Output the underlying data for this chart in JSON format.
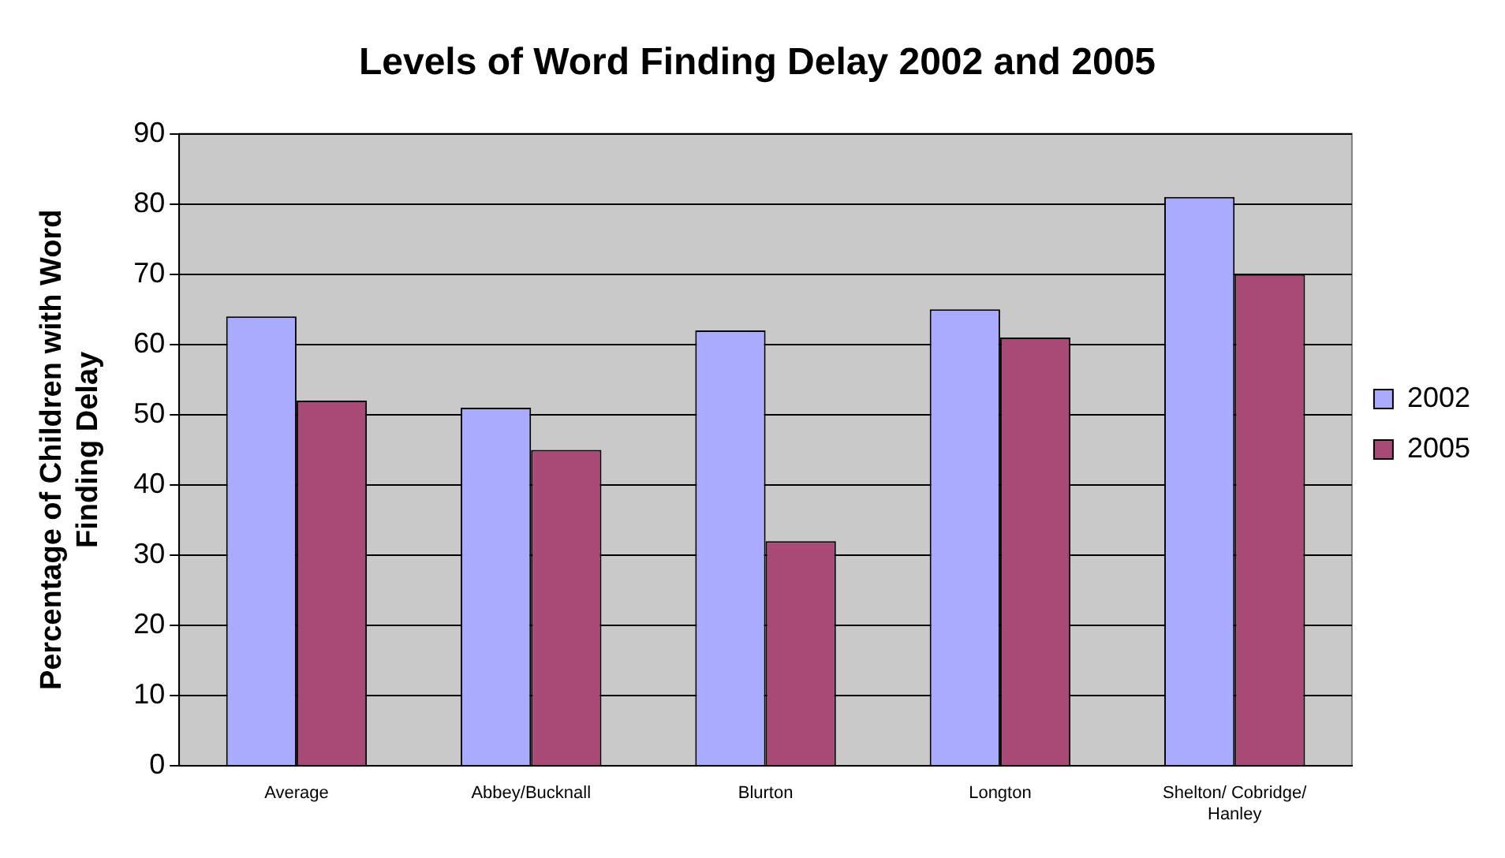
{
  "chart_data": {
    "type": "bar",
    "title": "Levels of Word Finding Delay 2002 and 2005",
    "ylabel": "Percentage of Children with Word Finding Delay",
    "categories": [
      "Average",
      "Abbey/Bucknall",
      "Blurton",
      "Longton",
      "Shelton/ Cobridge/ Hanley"
    ],
    "series": [
      {
        "name": "2002",
        "color": "#a9abff",
        "values": [
          64,
          51,
          62,
          65,
          81
        ]
      },
      {
        "name": "2005",
        "color": "#a94a76",
        "values": [
          52,
          45,
          32,
          61,
          70
        ]
      }
    ],
    "ylim": [
      0,
      90
    ],
    "yticks": [
      0,
      10,
      20,
      30,
      40,
      50,
      60,
      70,
      80,
      90
    ],
    "grid": "y",
    "legend": "right"
  }
}
